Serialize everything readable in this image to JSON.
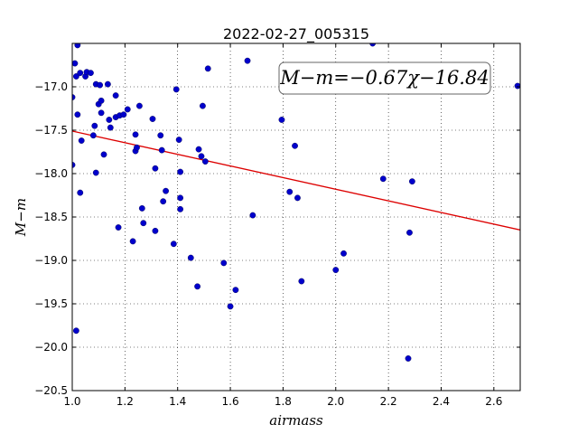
{
  "chart_data": {
    "type": "scatter",
    "title": "2022-02-27_005315",
    "xlabel": "airmass",
    "ylabel": "M−m",
    "xlim": [
      1.0,
      2.7
    ],
    "ylim": [
      -20.5,
      -16.5
    ],
    "y_inverted": true,
    "grid": true,
    "x_ticks": [
      1.0,
      1.2,
      1.4,
      1.6,
      1.8,
      2.0,
      2.2,
      2.4,
      2.6
    ],
    "x_tick_labels": [
      "1.0",
      "1.2",
      "1.4",
      "1.6",
      "1.8",
      "2.0",
      "2.2",
      "2.4",
      "2.6"
    ],
    "y_ticks": [
      -17.0,
      -17.5,
      -18.0,
      -18.5,
      -19.0,
      -19.5,
      -20.0,
      -20.5
    ],
    "y_tick_labels": [
      "−17.0",
      "−17.5",
      "−18.0",
      "−18.5",
      "−19.0",
      "−19.5",
      "−20.0",
      "−20.5"
    ],
    "annotation": "M−m=−0.67χ−16.84",
    "fit": {
      "slope": -0.67,
      "intercept": -16.84,
      "x_range": [
        1.0,
        2.7
      ],
      "color": "#dd0000"
    },
    "marker_color": "#0000cc",
    "points": [
      [
        1.0,
        -17.12
      ],
      [
        1.0,
        -17.9
      ],
      [
        1.01,
        -16.73
      ],
      [
        1.02,
        -16.52
      ],
      [
        1.015,
        -16.88
      ],
      [
        1.03,
        -16.84
      ],
      [
        1.02,
        -17.32
      ],
      [
        1.03,
        -18.22
      ],
      [
        1.035,
        -17.62
      ],
      [
        1.05,
        -16.88
      ],
      [
        1.055,
        -16.83
      ],
      [
        1.07,
        -16.84
      ],
      [
        1.08,
        -17.56
      ],
      [
        1.085,
        -17.45
      ],
      [
        1.09,
        -16.97
      ],
      [
        1.09,
        -17.99
      ],
      [
        1.1,
        -17.2
      ],
      [
        1.105,
        -16.98
      ],
      [
        1.11,
        -17.16
      ],
      [
        1.11,
        -17.3
      ],
      [
        1.12,
        -17.78
      ],
      [
        1.135,
        -16.97
      ],
      [
        1.14,
        -17.38
      ],
      [
        1.145,
        -17.47
      ],
      [
        1.165,
        -17.35
      ],
      [
        1.165,
        -17.1
      ],
      [
        1.175,
        -18.62
      ],
      [
        1.18,
        -17.33
      ],
      [
        1.195,
        -17.32
      ],
      [
        1.21,
        -17.26
      ],
      [
        1.23,
        -18.78
      ],
      [
        1.24,
        -17.55
      ],
      [
        1.24,
        -17.74
      ],
      [
        1.245,
        -17.7
      ],
      [
        1.255,
        -17.22
      ],
      [
        1.265,
        -18.4
      ],
      [
        1.27,
        -18.57
      ],
      [
        1.305,
        -17.37
      ],
      [
        1.315,
        -17.94
      ],
      [
        1.315,
        -18.66
      ],
      [
        1.335,
        -17.56
      ],
      [
        1.34,
        -17.73
      ],
      [
        1.345,
        -18.32
      ],
      [
        1.355,
        -18.2
      ],
      [
        1.385,
        -18.81
      ],
      [
        1.395,
        -17.03
      ],
      [
        1.405,
        -17.61
      ],
      [
        1.41,
        -18.28
      ],
      [
        1.41,
        -18.41
      ],
      [
        1.41,
        -17.98
      ],
      [
        1.45,
        -18.97
      ],
      [
        1.475,
        -19.3
      ],
      [
        1.48,
        -17.72
      ],
      [
        1.49,
        -17.8
      ],
      [
        1.495,
        -17.22
      ],
      [
        1.505,
        -17.86
      ],
      [
        1.515,
        -16.79
      ],
      [
        1.575,
        -19.03
      ],
      [
        1.6,
        -19.53
      ],
      [
        1.62,
        -19.34
      ],
      [
        1.665,
        -16.7
      ],
      [
        1.685,
        -18.48
      ],
      [
        1.795,
        -17.38
      ],
      [
        1.825,
        -18.21
      ],
      [
        1.845,
        -17.68
      ],
      [
        1.855,
        -18.28
      ],
      [
        1.87,
        -19.24
      ],
      [
        2.0,
        -19.11
      ],
      [
        2.03,
        -18.92
      ],
      [
        2.14,
        -16.5
      ],
      [
        2.18,
        -18.06
      ],
      [
        2.275,
        -20.13
      ],
      [
        2.28,
        -18.68
      ],
      [
        2.29,
        -18.09
      ],
      [
        2.69,
        -16.99
      ],
      [
        1.015,
        -19.81
      ]
    ]
  }
}
